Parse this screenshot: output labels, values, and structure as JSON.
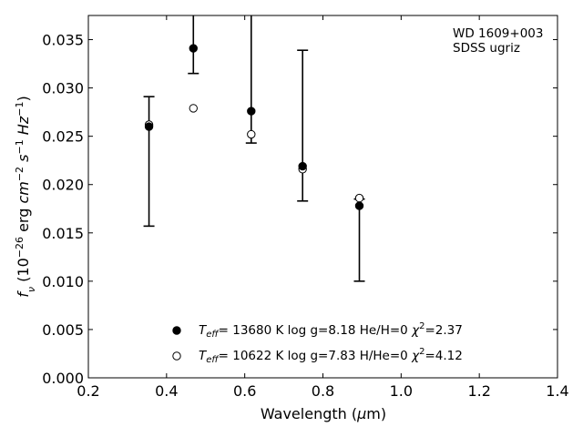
{
  "chart_data": {
    "type": "scatter",
    "annotation": [
      "WD 1609+003",
      "SDSS ugriz"
    ],
    "xlabel": {
      "main": "Wavelength (",
      "mu": "μ",
      "unit": "m)"
    },
    "ylabel": "f_ν (10^-26 erg cm^-2 s^-1 Hz^-1)",
    "xlim": [
      0.2,
      1.4
    ],
    "ylim": [
      0.0,
      0.0375
    ],
    "xticks": [
      "0.2",
      "0.4",
      "0.6",
      "0.8",
      "1.0",
      "1.2",
      "1.4"
    ],
    "yticks": [
      "0.000",
      "0.005",
      "0.010",
      "0.015",
      "0.020",
      "0.025",
      "0.030",
      "0.035"
    ],
    "grid": false,
    "legend_position": "bottom-center",
    "observed": {
      "x": [
        0.3551,
        0.4686,
        0.6166,
        0.748,
        0.8932
      ],
      "y": [
        0.026,
        0.0341,
        0.0276,
        0.0219,
        0.0178
      ],
      "yerr_low": [
        0.0157,
        0.0315,
        0.0243,
        0.0183,
        0.01
      ],
      "yerr_high": [
        0.0291,
        0.0375,
        0.0375,
        0.0339,
        0.0185
      ]
    },
    "series": [
      {
        "name": "T_eff= 13680 K  log g=8.18  He/H=0  χ²=2.37",
        "marker": "filled-circle",
        "x": [
          0.3551,
          0.4686,
          0.6166,
          0.748,
          0.8932
        ],
        "y": [
          0.026,
          0.0341,
          0.0276,
          0.0219,
          0.0178
        ]
      },
      {
        "name": "T_eff= 10622 K  log g=7.83  H/He=0  χ²=4.12",
        "marker": "open-circle",
        "x": [
          0.3551,
          0.4686,
          0.6166,
          0.748,
          0.8932
        ],
        "y": [
          0.0262,
          0.0279,
          0.0252,
          0.0216,
          0.0186
        ]
      }
    ],
    "legend": [
      {
        "T": "T",
        "sub": "eff",
        "rest": "= 13680 K  log g=8.18  He/H=0  ",
        "chi": "χ",
        "sup": "2",
        "val": "=2.37"
      },
      {
        "T": "T",
        "sub": "eff",
        "rest": "= 10622 K  log g=7.83  H/He=0  ",
        "chi": "χ",
        "sup": "2",
        "val": "=4.12"
      }
    ]
  }
}
